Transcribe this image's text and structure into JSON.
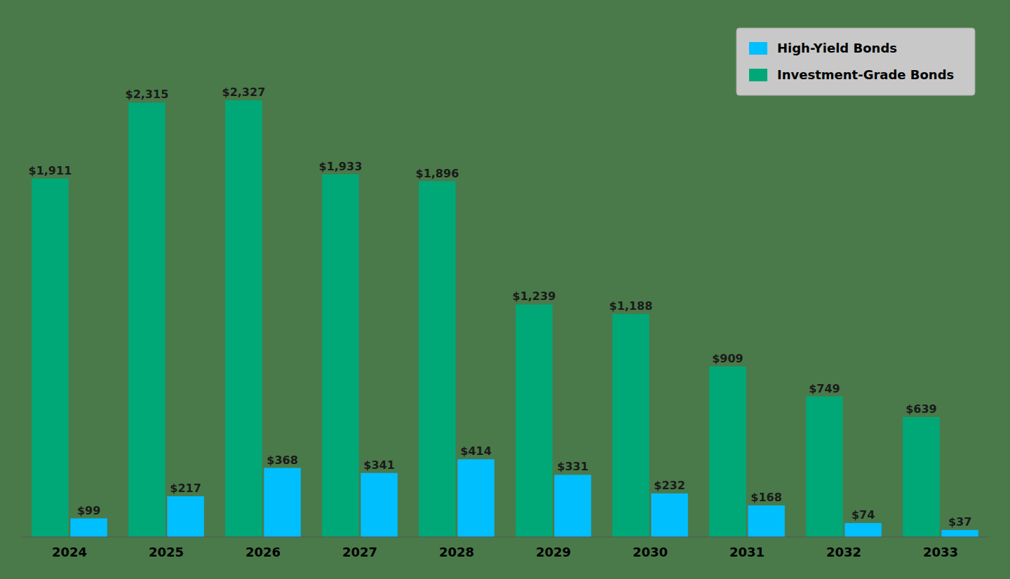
{
  "chart_data": {
    "type": "bar",
    "categories": [
      "2024",
      "2025",
      "2026",
      "2027",
      "2028",
      "2029",
      "2030",
      "2031",
      "2032",
      "2033"
    ],
    "series": [
      {
        "name": "Investment-Grade Bonds",
        "color": "#00A878",
        "values": [
          1911,
          2315,
          2327,
          1933,
          1896,
          1239,
          1188,
          909,
          749,
          639
        ],
        "value_labels": [
          "$1,911",
          "$2,315",
          "$2,327",
          "$1,933",
          "$1,896",
          "$1,239",
          "$1,188",
          "$909",
          "$749",
          "$639"
        ]
      },
      {
        "name": "High-Yield Bonds",
        "color": "#00BFFF",
        "values": [
          99,
          217,
          368,
          341,
          414,
          331,
          232,
          168,
          74,
          37
        ],
        "value_labels": [
          "$99",
          "$217",
          "$368",
          "$341",
          "$414",
          "$331",
          "$232",
          "$168",
          "$74",
          "$37"
        ]
      }
    ],
    "ylim": [
      0,
      2750
    ],
    "data_labels": true,
    "tick_labels": "x",
    "legend": "upper right",
    "grid": false
  }
}
